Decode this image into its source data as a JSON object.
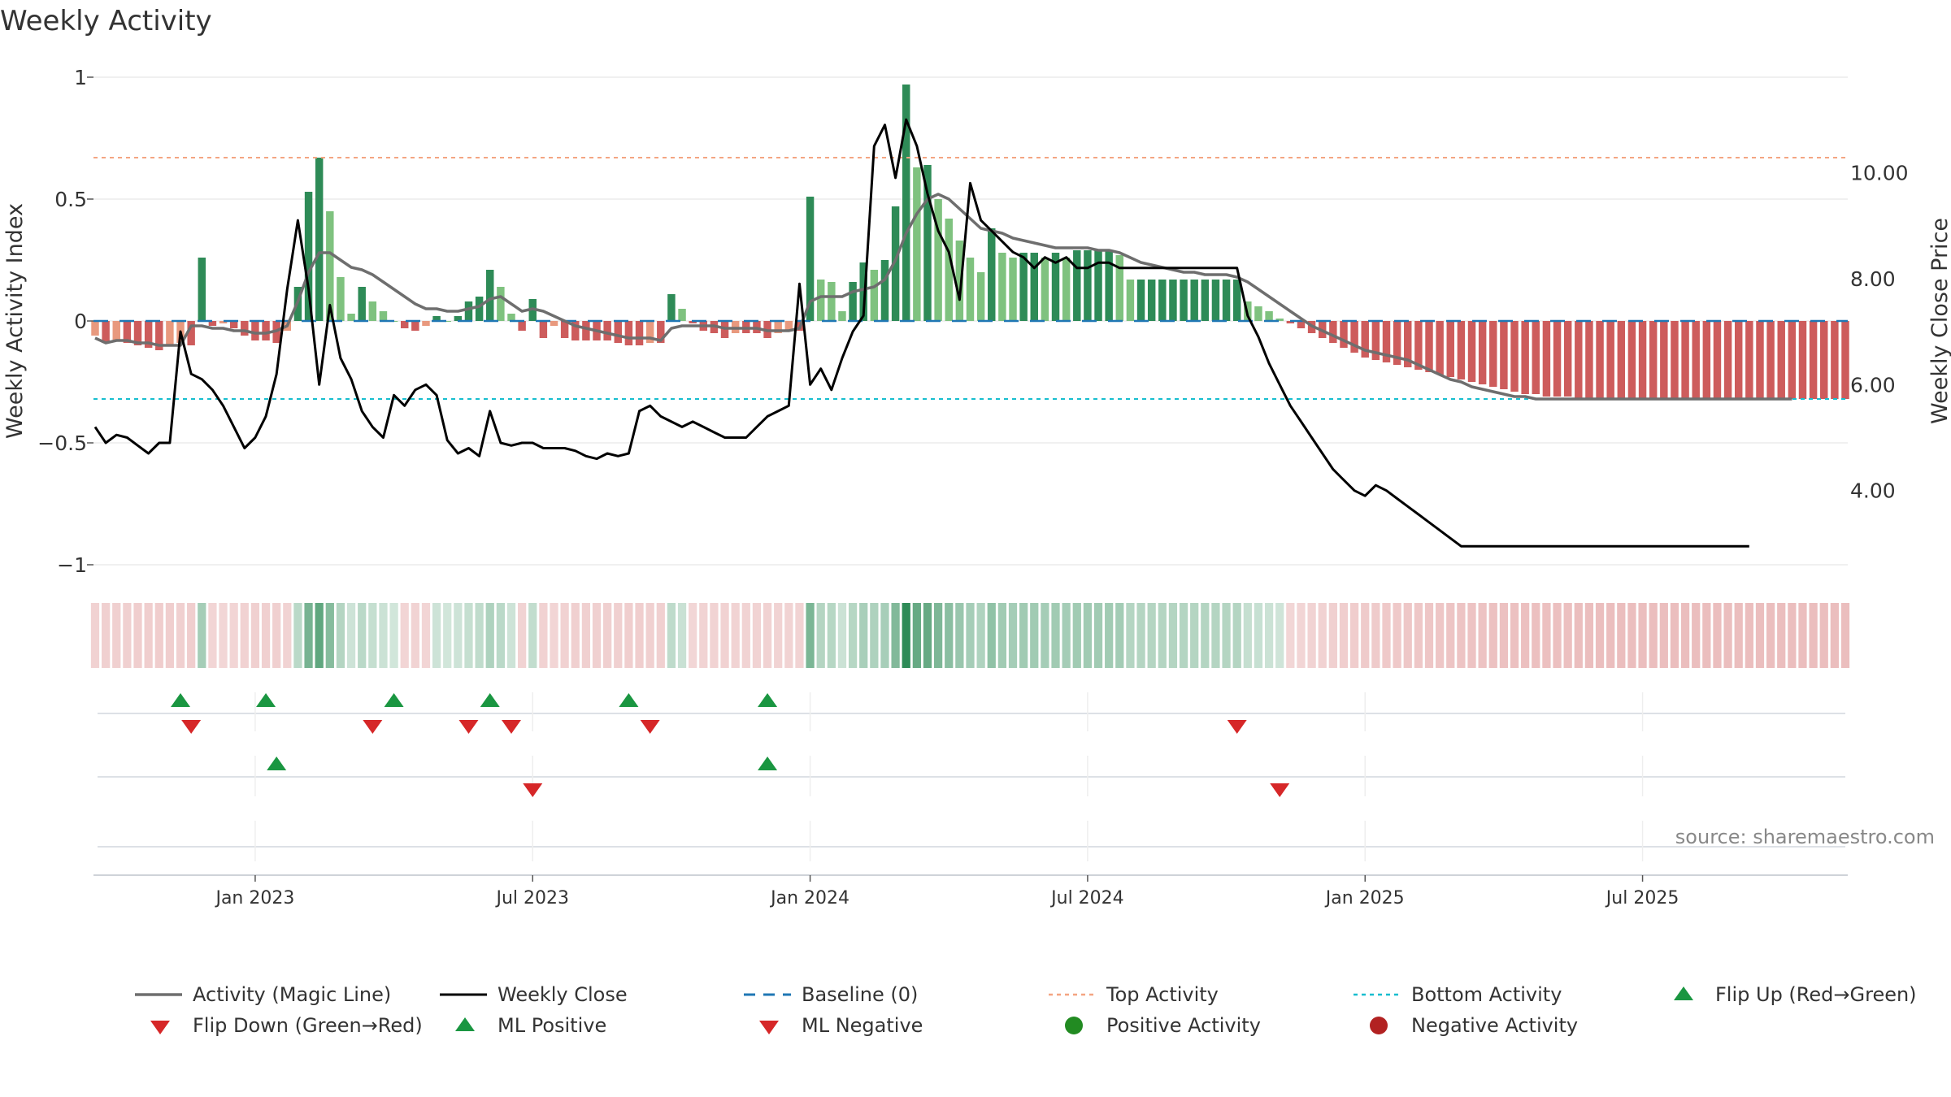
{
  "chart_data": {
    "type": "bar",
    "title": "Weekly Activity",
    "ylabel": "Weekly Activity Index",
    "y2label": "Weekly Close Price",
    "ylim": [
      -1,
      1
    ],
    "y2lim": [
      2.6,
      11.8
    ],
    "y_ticks": [
      {
        "v": 1,
        "label": "1"
      },
      {
        "v": 0.5,
        "label": "0.5"
      },
      {
        "v": 0,
        "label": "0"
      },
      {
        "v": -0.5,
        "label": "−0.5"
      },
      {
        "v": -1,
        "label": "−1"
      }
    ],
    "y2_ticks": [
      {
        "v": 10,
        "label": "10.00"
      },
      {
        "v": 8,
        "label": "8.00"
      },
      {
        "v": 6,
        "label": "6.00"
      },
      {
        "v": 4,
        "label": "4.00"
      }
    ],
    "x_ticks": [
      "Jan 2023",
      "Jul 2023",
      "Jan 2024",
      "Jul 2024",
      "Jan 2025",
      "Jul 2025"
    ],
    "x_tick_weeks": [
      15,
      41,
      67,
      93,
      119,
      145
    ],
    "top_activity": 0.67,
    "bottom_activity": -0.32,
    "baseline": 0,
    "source": "source: sharemaestro.com",
    "colors": {
      "strong_green": "#2e8b57",
      "light_green": "#7fc27f",
      "strong_red": "#cd5c5c",
      "light_red": "#e8997e",
      "magic_line": "#6e6e6e",
      "close": "#000000",
      "baseline": "#1f77b4",
      "top": "#f4a582",
      "bottom": "#17becf",
      "flip_up": "#1a9641",
      "flip_down": "#d62728",
      "positive": "#228b22",
      "negative": "#b22222"
    },
    "activity": [
      -0.06,
      -0.09,
      -0.08,
      -0.09,
      -0.1,
      -0.11,
      -0.12,
      -0.1,
      -0.09,
      -0.1,
      0.26,
      -0.02,
      -0.01,
      -0.03,
      -0.06,
      -0.08,
      -0.08,
      -0.09,
      -0.04,
      0.14,
      0.53,
      0.67,
      0.45,
      0.18,
      0.03,
      0.14,
      0.08,
      0.04,
      0.0,
      -0.03,
      -0.04,
      -0.02,
      0.02,
      0.0,
      0.02,
      0.08,
      0.1,
      0.21,
      0.14,
      0.03,
      -0.04,
      0.09,
      -0.07,
      -0.02,
      -0.07,
      -0.08,
      -0.08,
      -0.08,
      -0.08,
      -0.09,
      -0.1,
      -0.1,
      -0.09,
      -0.09,
      0.11,
      0.05,
      -0.01,
      -0.04,
      -0.05,
      -0.07,
      -0.05,
      -0.05,
      -0.05,
      -0.07,
      -0.05,
      -0.04,
      -0.04,
      0.51,
      0.17,
      0.16,
      0.04,
      0.16,
      0.24,
      0.21,
      0.25,
      0.47,
      0.97,
      0.63,
      0.64,
      0.5,
      0.42,
      0.33,
      0.26,
      0.2,
      0.38,
      0.28,
      0.26,
      0.28,
      0.28,
      0.26,
      0.28,
      0.26,
      0.29,
      0.29,
      0.29,
      0.29,
      0.27,
      0.17,
      0.17,
      0.17,
      0.17,
      0.17,
      0.17,
      0.17,
      0.17,
      0.17,
      0.17,
      0.17,
      0.08,
      0.06,
      0.04,
      0.01,
      -0.01,
      -0.03,
      -0.05,
      -0.07,
      -0.09,
      -0.11,
      -0.13,
      -0.15,
      -0.16,
      -0.17,
      -0.18,
      -0.19,
      -0.2,
      -0.21,
      -0.22,
      -0.23,
      -0.24,
      -0.25,
      -0.26,
      -0.27,
      -0.28,
      -0.29,
      -0.3,
      -0.3,
      -0.31,
      -0.31,
      -0.31,
      -0.32,
      -0.32,
      -0.32,
      -0.32,
      -0.32,
      -0.32,
      -0.32,
      -0.32,
      -0.32,
      -0.32,
      -0.32,
      -0.32,
      -0.32,
      -0.32,
      -0.32,
      -0.32,
      -0.32,
      -0.32,
      -0.32,
      -0.32,
      -0.32,
      -0.32,
      -0.32,
      -0.32,
      -0.32,
      -0.32
    ],
    "close": [
      5.2,
      4.9,
      5.05,
      5.0,
      4.85,
      4.7,
      4.9,
      4.9,
      7.0,
      6.2,
      6.1,
      5.9,
      5.6,
      5.2,
      4.8,
      5.0,
      5.4,
      6.2,
      7.8,
      9.1,
      7.8,
      6.0,
      7.5,
      6.5,
      6.1,
      5.5,
      5.2,
      5.0,
      5.8,
      5.6,
      5.9,
      6.0,
      5.8,
      4.95,
      4.7,
      4.8,
      4.65,
      5.5,
      4.9,
      4.85,
      4.9,
      4.9,
      4.8,
      4.8,
      4.8,
      4.75,
      4.65,
      4.6,
      4.7,
      4.65,
      4.7,
      5.5,
      5.6,
      5.4,
      5.3,
      5.2,
      5.3,
      5.2,
      5.1,
      5.0,
      5.0,
      5.0,
      5.2,
      5.4,
      5.5,
      5.6,
      7.9,
      6.0,
      6.3,
      5.9,
      6.5,
      7.0,
      7.3,
      10.5,
      10.9,
      9.9,
      11.0,
      10.5,
      9.6,
      8.9,
      8.5,
      7.6,
      9.8,
      9.1,
      8.9,
      8.7,
      8.5,
      8.4,
      8.2,
      8.4,
      8.3,
      8.4,
      8.2,
      8.2,
      8.3,
      8.3,
      8.2,
      8.2,
      8.2,
      8.2,
      8.2,
      8.2,
      8.2,
      8.2,
      8.2,
      8.2,
      8.2,
      8.2,
      7.3,
      6.9,
      6.4,
      6.0,
      5.6,
      5.3,
      5.0,
      4.7,
      4.4,
      4.2,
      4.0,
      3.9,
      4.1,
      4.0,
      3.85,
      3.7,
      3.55,
      3.4,
      3.25,
      3.1,
      2.95,
      2.95,
      2.95,
      2.95,
      2.95,
      2.95,
      2.95,
      2.95,
      2.95,
      2.95,
      2.95,
      2.95,
      2.95,
      2.95,
      2.95,
      2.95,
      2.95,
      2.95,
      2.95,
      2.95,
      2.95,
      2.95,
      2.95,
      2.95,
      2.95,
      2.95,
      2.95,
      2.95
    ],
    "magic": [
      -0.07,
      -0.09,
      -0.08,
      -0.08,
      -0.09,
      -0.09,
      -0.1,
      -0.1,
      -0.1,
      -0.02,
      -0.02,
      -0.03,
      -0.03,
      -0.04,
      -0.04,
      -0.05,
      -0.05,
      -0.04,
      -0.02,
      0.08,
      0.2,
      0.28,
      0.28,
      0.25,
      0.22,
      0.21,
      0.19,
      0.16,
      0.13,
      0.1,
      0.07,
      0.05,
      0.05,
      0.04,
      0.04,
      0.05,
      0.06,
      0.09,
      0.1,
      0.07,
      0.04,
      0.05,
      0.04,
      0.02,
      0.0,
      -0.02,
      -0.03,
      -0.04,
      -0.05,
      -0.06,
      -0.07,
      -0.07,
      -0.07,
      -0.08,
      -0.03,
      -0.02,
      -0.02,
      -0.02,
      -0.02,
      -0.03,
      -0.03,
      -0.03,
      -0.03,
      -0.04,
      -0.04,
      -0.04,
      -0.03,
      0.08,
      0.1,
      0.1,
      0.1,
      0.12,
      0.13,
      0.14,
      0.17,
      0.25,
      0.36,
      0.44,
      0.5,
      0.52,
      0.5,
      0.46,
      0.42,
      0.38,
      0.37,
      0.36,
      0.34,
      0.33,
      0.32,
      0.31,
      0.3,
      0.3,
      0.3,
      0.3,
      0.29,
      0.29,
      0.28,
      0.26,
      0.24,
      0.23,
      0.22,
      0.21,
      0.2,
      0.2,
      0.19,
      0.19,
      0.19,
      0.18,
      0.16,
      0.13,
      0.1,
      0.07,
      0.04,
      0.01,
      -0.02,
      -0.04,
      -0.06,
      -0.08,
      -0.1,
      -0.12,
      -0.13,
      -0.14,
      -0.15,
      -0.16,
      -0.18,
      -0.2,
      -0.22,
      -0.24,
      -0.25,
      -0.27,
      -0.28,
      -0.29,
      -0.3,
      -0.31,
      -0.31,
      -0.32,
      -0.32,
      -0.32,
      -0.32,
      -0.32,
      -0.32,
      -0.32,
      -0.32,
      -0.32,
      -0.32,
      -0.32,
      -0.32,
      -0.32,
      -0.32,
      -0.32,
      -0.32,
      -0.32,
      -0.32,
      -0.32,
      -0.32,
      -0.32,
      -0.32,
      -0.32,
      -0.32,
      -0.32
    ],
    "flip_up_weeks": [
      8,
      16,
      28,
      37,
      50,
      63
    ],
    "flip_down_weeks": [
      9,
      26,
      35,
      39,
      52,
      107
    ],
    "ml_positive_weeks": [
      17,
      63
    ],
    "ml_negative_weeks": [
      41,
      111
    ],
    "legend": {
      "magic": "Activity (Magic Line)",
      "close": "Weekly Close",
      "baseline": "Baseline (0)",
      "top": "Top Activity",
      "bottom": "Bottom Activity",
      "flip_up": "Flip Up (Red→Green)",
      "flip_down": "Flip Down (Green→Red)",
      "ml_positive": "ML Positive",
      "ml_negative": "ML Negative",
      "positive": "Positive Activity",
      "negative": "Negative Activity"
    }
  }
}
